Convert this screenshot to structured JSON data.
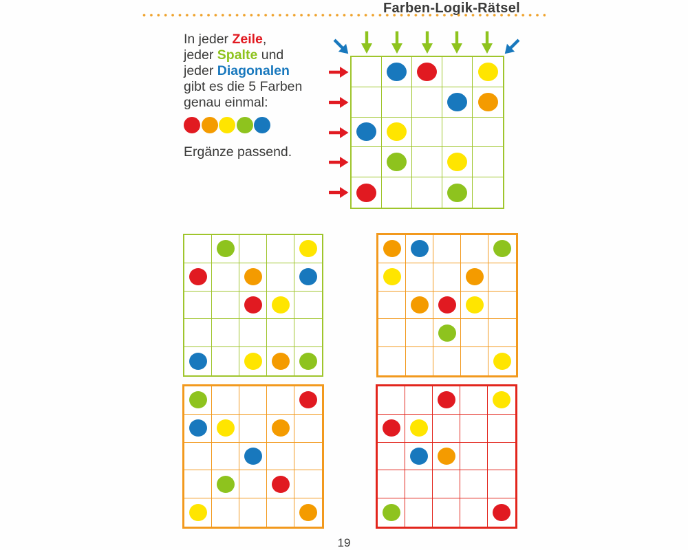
{
  "page": {
    "title": "Farben-Logik-Rätsel",
    "page_number": "19"
  },
  "colors": {
    "red": "#e11a21",
    "orange": "#f49b00",
    "yellow": "#ffe500",
    "green": "#8ec31e",
    "blue": "#1878bd",
    "grid_green": "#9fc52c",
    "grid_orange": "#f2991d",
    "grid_red": "#e2251c",
    "text": "#3a3a39",
    "dotted_line": "#efa32d"
  },
  "instructions": {
    "lines": [
      [
        {
          "text": "In jeder "
        },
        {
          "text": "Zeile",
          "color": "red"
        },
        {
          "text": ","
        }
      ],
      [
        {
          "text": "jeder "
        },
        {
          "text": "Spalte",
          "color": "green"
        },
        {
          "text": " und"
        }
      ],
      [
        {
          "text": "jeder "
        },
        {
          "text": "Diagonalen",
          "color": "blue"
        }
      ],
      [
        {
          "text": "gibt es die 5 Farben"
        }
      ],
      [
        {
          "text": "genau einmal:"
        }
      ]
    ],
    "palette": [
      "red",
      "orange",
      "yellow",
      "green",
      "blue"
    ],
    "footer": "Ergänze passend."
  },
  "puzzles": {
    "main": {
      "border": "grid_green",
      "rows": 5,
      "cols": 5,
      "dots": [
        {
          "row": 1,
          "col": 2,
          "color": "blue"
        },
        {
          "row": 1,
          "col": 3,
          "color": "red"
        },
        {
          "row": 1,
          "col": 5,
          "color": "yellow"
        },
        {
          "row": 2,
          "col": 4,
          "color": "blue"
        },
        {
          "row": 2,
          "col": 5,
          "color": "orange"
        },
        {
          "row": 3,
          "col": 1,
          "color": "blue"
        },
        {
          "row": 3,
          "col": 2,
          "color": "yellow"
        },
        {
          "row": 4,
          "col": 2,
          "color": "green"
        },
        {
          "row": 4,
          "col": 4,
          "color": "yellow"
        },
        {
          "row": 5,
          "col": 1,
          "color": "red"
        },
        {
          "row": 5,
          "col": 4,
          "color": "green"
        }
      ],
      "column_arrows": {
        "color": "green",
        "direction": "down",
        "count": 5
      },
      "row_arrows": {
        "color": "red",
        "direction": "right",
        "count": 5
      },
      "diagonal_arrows": [
        {
          "position": "top-left",
          "direction": "down-right",
          "color": "blue"
        },
        {
          "position": "top-right",
          "direction": "down-left",
          "color": "blue"
        }
      ]
    },
    "small": [
      {
        "border": "grid_green",
        "rows": 5,
        "cols": 5,
        "dots": [
          {
            "row": 1,
            "col": 2,
            "color": "green"
          },
          {
            "row": 1,
            "col": 5,
            "color": "yellow"
          },
          {
            "row": 2,
            "col": 1,
            "color": "red"
          },
          {
            "row": 2,
            "col": 3,
            "color": "orange"
          },
          {
            "row": 2,
            "col": 5,
            "color": "blue"
          },
          {
            "row": 3,
            "col": 3,
            "color": "red"
          },
          {
            "row": 3,
            "col": 4,
            "color": "yellow"
          },
          {
            "row": 5,
            "col": 1,
            "color": "blue"
          },
          {
            "row": 5,
            "col": 3,
            "color": "yellow"
          },
          {
            "row": 5,
            "col": 4,
            "color": "orange"
          },
          {
            "row": 5,
            "col": 5,
            "color": "green"
          }
        ]
      },
      {
        "border": "grid_orange",
        "rows": 5,
        "cols": 5,
        "dots": [
          {
            "row": 1,
            "col": 1,
            "color": "orange"
          },
          {
            "row": 1,
            "col": 2,
            "color": "blue"
          },
          {
            "row": 1,
            "col": 5,
            "color": "green"
          },
          {
            "row": 2,
            "col": 1,
            "color": "yellow"
          },
          {
            "row": 2,
            "col": 4,
            "color": "orange"
          },
          {
            "row": 3,
            "col": 2,
            "color": "orange"
          },
          {
            "row": 3,
            "col": 3,
            "color": "red"
          },
          {
            "row": 3,
            "col": 4,
            "color": "yellow"
          },
          {
            "row": 4,
            "col": 3,
            "color": "green"
          },
          {
            "row": 5,
            "col": 5,
            "color": "yellow"
          }
        ]
      },
      {
        "border": "grid_orange",
        "rows": 5,
        "cols": 5,
        "dots": [
          {
            "row": 1,
            "col": 1,
            "color": "green"
          },
          {
            "row": 1,
            "col": 5,
            "color": "red"
          },
          {
            "row": 2,
            "col": 1,
            "color": "blue"
          },
          {
            "row": 2,
            "col": 2,
            "color": "yellow"
          },
          {
            "row": 2,
            "col": 4,
            "color": "orange"
          },
          {
            "row": 3,
            "col": 3,
            "color": "blue"
          },
          {
            "row": 4,
            "col": 2,
            "color": "green"
          },
          {
            "row": 4,
            "col": 4,
            "color": "red"
          },
          {
            "row": 5,
            "col": 1,
            "color": "yellow"
          },
          {
            "row": 5,
            "col": 5,
            "color": "orange"
          }
        ]
      },
      {
        "border": "grid_red",
        "rows": 5,
        "cols": 5,
        "dots": [
          {
            "row": 1,
            "col": 3,
            "color": "red"
          },
          {
            "row": 1,
            "col": 5,
            "color": "yellow"
          },
          {
            "row": 2,
            "col": 1,
            "color": "red"
          },
          {
            "row": 2,
            "col": 2,
            "color": "yellow"
          },
          {
            "row": 3,
            "col": 2,
            "color": "blue"
          },
          {
            "row": 3,
            "col": 3,
            "color": "orange"
          },
          {
            "row": 5,
            "col": 1,
            "color": "green"
          },
          {
            "row": 5,
            "col": 5,
            "color": "red"
          }
        ]
      }
    ]
  }
}
